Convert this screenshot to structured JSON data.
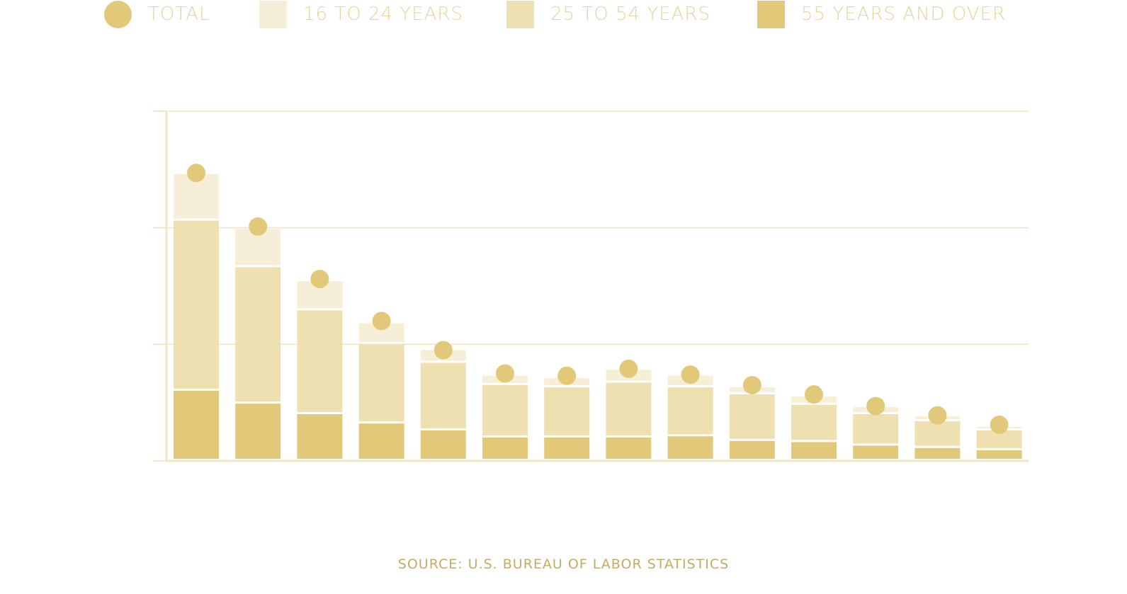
{
  "legend": {
    "items": [
      {
        "label": "TOTAL",
        "shape": "circle",
        "color": "#e2c97a"
      },
      {
        "label": "16 TO 24 YEARS",
        "shape": "square",
        "color": "#f6eed7"
      },
      {
        "label": "25 TO 54 YEARS",
        "shape": "square",
        "color": "#eee0b1"
      },
      {
        "label": "55 YEARS AND OVER",
        "shape": "square",
        "color": "#e2c97a"
      }
    ]
  },
  "source": "SOURCE: U.S. BUREAU OF LABOR STATISTICS",
  "colors": {
    "total": "#e2c97a",
    "age_16_24": "#f6eed7",
    "age_25_54": "#eee0b1",
    "age_55_over": "#e2c97a",
    "grid": "#efe3bd",
    "axis": "#f1e6c4",
    "text": "#e8d49a",
    "source_text": "#c4ab66"
  },
  "chart_data": {
    "type": "bar",
    "stacked": true,
    "ylim": [
      0,
      3
    ],
    "grid": true,
    "tick_labels_shown": false,
    "legend_position": "top",
    "categories": [
      "1",
      "2",
      "3",
      "4",
      "5",
      "6",
      "7",
      "8",
      "9",
      "10",
      "11",
      "12",
      "13",
      "14"
    ],
    "series": [
      {
        "name": "55 YEARS AND OVER",
        "values": [
          0.61,
          0.5,
          0.41,
          0.33,
          0.27,
          0.21,
          0.21,
          0.21,
          0.22,
          0.18,
          0.17,
          0.14,
          0.12,
          0.1
        ]
      },
      {
        "name": "25 TO 54 YEARS",
        "values": [
          1.46,
          1.17,
          0.89,
          0.68,
          0.58,
          0.45,
          0.43,
          0.47,
          0.42,
          0.4,
          0.32,
          0.27,
          0.23,
          0.17
        ]
      },
      {
        "name": "16 TO 24 YEARS",
        "values": [
          0.4,
          0.33,
          0.25,
          0.18,
          0.11,
          0.08,
          0.08,
          0.11,
          0.1,
          0.06,
          0.07,
          0.06,
          0.04,
          0.03
        ]
      }
    ],
    "total": [
      2.47,
      2.01,
      1.56,
      1.2,
      0.95,
      0.75,
      0.73,
      0.79,
      0.74,
      0.65,
      0.57,
      0.47,
      0.39,
      0.31
    ]
  }
}
